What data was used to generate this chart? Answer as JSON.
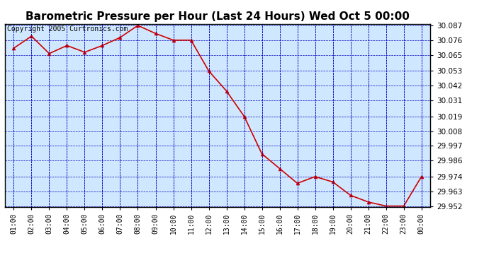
{
  "title": "Barometric Pressure per Hour (Last 24 Hours) Wed Oct 5 00:00",
  "copyright": "Copyright 2005 Curtronics.com",
  "x_labels": [
    "01:00",
    "02:00",
    "03:00",
    "04:00",
    "05:00",
    "06:00",
    "07:00",
    "08:00",
    "09:00",
    "10:00",
    "11:00",
    "12:00",
    "13:00",
    "14:00",
    "15:00",
    "16:00",
    "17:00",
    "18:00",
    "19:00",
    "20:00",
    "21:00",
    "22:00",
    "23:00",
    "00:00"
  ],
  "y_values": [
    30.07,
    30.079,
    30.066,
    30.072,
    30.067,
    30.072,
    30.078,
    30.087,
    30.081,
    30.076,
    30.076,
    30.053,
    30.038,
    30.019,
    29.991,
    29.98,
    29.969,
    29.974,
    29.97,
    29.96,
    29.955,
    29.952,
    29.952,
    29.974
  ],
  "ylim_min": 29.9515,
  "ylim_max": 30.0882,
  "yticks": [
    30.087,
    30.076,
    30.065,
    30.053,
    30.042,
    30.031,
    30.019,
    30.008,
    29.997,
    29.986,
    29.974,
    29.963,
    29.952
  ],
  "line_color": "#cc0000",
  "marker_color": "#cc0000",
  "bg_color": "#d0e8ff",
  "grid_color": "#0000bb",
  "title_fontsize": 11,
  "copyright_fontsize": 7,
  "tick_fontsize": 7,
  "ytick_fontsize": 7.5
}
